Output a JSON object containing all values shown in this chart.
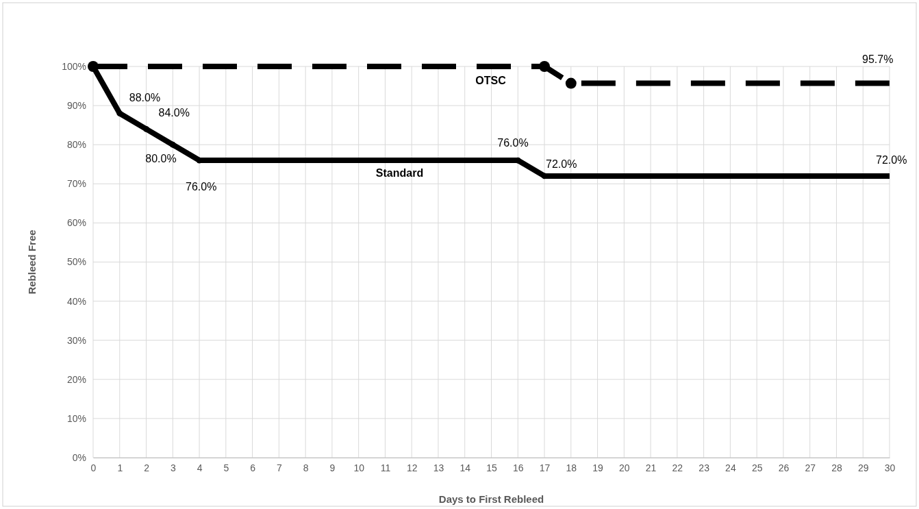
{
  "chart_data": {
    "type": "line",
    "xlabel": "Days to First Rebleed",
    "ylabel": "Rebleed Free",
    "xlim": [
      0,
      30
    ],
    "xticks": [
      0,
      1,
      2,
      3,
      4,
      5,
      6,
      7,
      8,
      9,
      10,
      11,
      12,
      13,
      14,
      15,
      16,
      17,
      18,
      19,
      20,
      21,
      22,
      23,
      24,
      25,
      26,
      27,
      28,
      29,
      30
    ],
    "ylim": [
      0,
      100
    ],
    "yticks": [
      {
        "value": 0,
        "label": "0%"
      },
      {
        "value": 10,
        "label": "10%"
      },
      {
        "value": 20,
        "label": "20%"
      },
      {
        "value": 30,
        "label": "30%"
      },
      {
        "value": 40,
        "label": "40%"
      },
      {
        "value": 50,
        "label": "50%"
      },
      {
        "value": 60,
        "label": "60%"
      },
      {
        "value": 70,
        "label": "70%"
      },
      {
        "value": 80,
        "label": "80%"
      },
      {
        "value": 90,
        "label": "90%"
      },
      {
        "value": 100,
        "label": "100%"
      }
    ],
    "grid": true,
    "marker": "circle",
    "series": [
      {
        "name": "OTSC",
        "color": "#000000",
        "line_style": "dashed",
        "x": [
          0,
          17,
          18,
          30
        ],
        "values": [
          100,
          100,
          95.7,
          95.7
        ],
        "value_labels": [
          null,
          null,
          null,
          "95.7%"
        ]
      },
      {
        "name": "Standard",
        "color": "#000000",
        "line_style": "solid",
        "x": [
          0,
          1,
          2,
          3,
          4,
          16,
          17,
          30
        ],
        "values": [
          100,
          88,
          84,
          80,
          76,
          76,
          72,
          72
        ],
        "value_labels": [
          null,
          "88.0%",
          "84.0%",
          "80.0%",
          "76.0%",
          "76.0%",
          "72.0%",
          "72.0%"
        ]
      }
    ]
  }
}
